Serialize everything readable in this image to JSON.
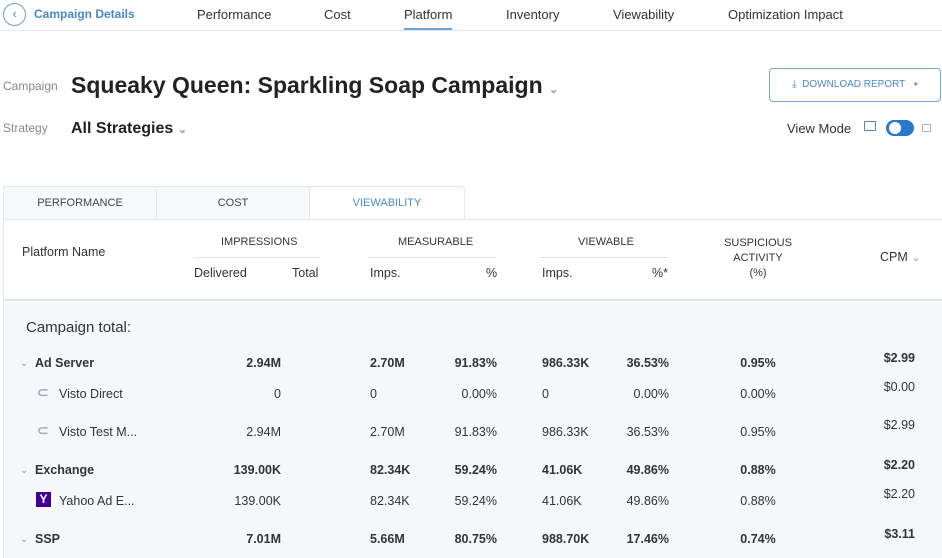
{
  "nav": {
    "back_label": "Campaign Details",
    "tabs": [
      "Performance",
      "Cost",
      "Platform",
      "Inventory",
      "Viewability",
      "Optimization Impact"
    ],
    "active": "Platform"
  },
  "campaign": {
    "label": "Campaign",
    "name": "Squeaky Queen: Sparkling Soap Campaign"
  },
  "strategy": {
    "label": "Strategy",
    "value": "All Strategies"
  },
  "download_label": "DOWNLOAD REPORT",
  "view_mode": {
    "label": "View Mode",
    "on": true
  },
  "tabs": [
    "PERFORMANCE",
    "COST",
    "VIEWABILITY"
  ],
  "columns": {
    "platform": "Platform Name",
    "impressions": "IMPRESSIONS",
    "delivered": "Delivered",
    "total": "Total",
    "measurable": "MEASURABLE",
    "imps": "Imps.",
    "pct": "%",
    "viewable": "VIEWABLE",
    "pct_star": "%*",
    "suspicious": [
      "SUSPICIOUS",
      "ACTIVITY",
      "(%)"
    ],
    "cpm": "CPM"
  },
  "campaign_total": "Campaign total:",
  "rows": [
    {
      "name": "Ad Server",
      "group": true,
      "delivered": "2.94M",
      "m_imps": "2.70M",
      "m_pct": "91.83%",
      "v_imps": "986.33K",
      "v_pct": "36.53%",
      "susp": "0.95%",
      "cpm": "$2.99"
    },
    {
      "name": "Visto Direct",
      "icon": "visto",
      "delivered": "0",
      "m_imps": "0",
      "m_pct": "0.00%",
      "v_imps": "0",
      "v_pct": "0.00%",
      "susp": "0.00%",
      "cpm": "$0.00"
    },
    {
      "name": "Visto Test M...",
      "icon": "visto",
      "delivered": "2.94M",
      "m_imps": "2.70M",
      "m_pct": "91.83%",
      "v_imps": "986.33K",
      "v_pct": "36.53%",
      "susp": "0.95%",
      "cpm": "$2.99"
    },
    {
      "name": "Exchange",
      "group": true,
      "delivered": "139.00K",
      "m_imps": "82.34K",
      "m_pct": "59.24%",
      "v_imps": "41.06K",
      "v_pct": "49.86%",
      "susp": "0.88%",
      "cpm": "$2.20"
    },
    {
      "name": "Yahoo Ad E...",
      "icon": "yahoo",
      "delivered": "139.00K",
      "m_imps": "82.34K",
      "m_pct": "59.24%",
      "v_imps": "41.06K",
      "v_pct": "49.86%",
      "susp": "0.88%",
      "cpm": "$2.20"
    },
    {
      "name": "SSP",
      "group": true,
      "delivered": "7.01M",
      "m_imps": "5.66M",
      "m_pct": "80.75%",
      "v_imps": "988.70K",
      "v_pct": "17.46%",
      "susp": "0.74%",
      "cpm": "$3.11"
    }
  ]
}
